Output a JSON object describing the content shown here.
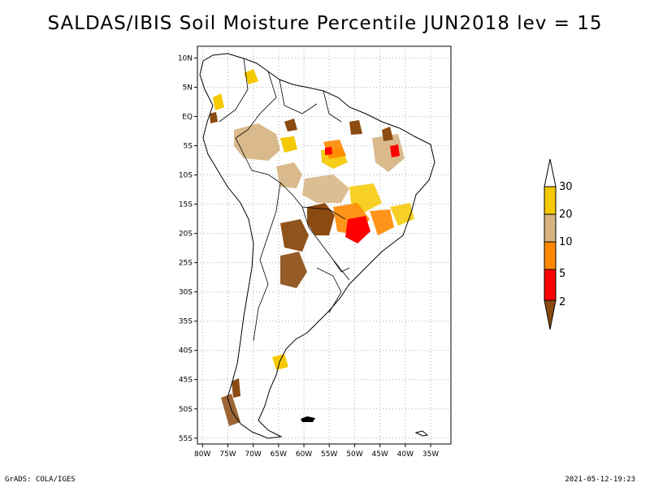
{
  "title": "SALDAS/IBIS Soil Moisture Percentile JUN2018 lev = 15",
  "footer": {
    "left": "GrADS: COLA/IGES",
    "right": "2021-05-12-19:23"
  },
  "map": {
    "lat_labels": [
      "10N",
      "5N",
      "EQ",
      "5S",
      "10S",
      "15S",
      "20S",
      "25S",
      "30S",
      "35S",
      "40S",
      "45S",
      "50S",
      "55S"
    ],
    "lat_values": [
      10,
      5,
      0,
      -5,
      -10,
      -15,
      -20,
      -25,
      -30,
      -35,
      -40,
      -45,
      -50,
      -55
    ],
    "lon_labels": [
      "80W",
      "75W",
      "70W",
      "65W",
      "60W",
      "55W",
      "50W",
      "45W",
      "40W",
      "35W"
    ],
    "lon_values": [
      -80,
      -75,
      -70,
      -65,
      -60,
      -55,
      -50,
      -45,
      -40,
      -35
    ],
    "lon_range": [
      -81,
      -31
    ],
    "lat_range": [
      -56,
      12
    ],
    "grid": true,
    "gridline_color": "#aaaaaa"
  },
  "legend": {
    "labels": [
      "30",
      "20",
      "10",
      "5",
      "2"
    ],
    "bins": [
      {
        "color": "#ffffff"
      },
      {
        "color": "#f5c800"
      },
      {
        "color": "#d6b380"
      },
      {
        "color": "#ff8800"
      },
      {
        "color": "#ff0000"
      },
      {
        "color": "#8a4a10"
      }
    ]
  },
  "colors": {
    "brown": "#8a4a10",
    "red": "#ff0000",
    "orange": "#ff8800",
    "tan": "#d6b380",
    "yellow": "#f5c800",
    "outline": "#000000"
  }
}
